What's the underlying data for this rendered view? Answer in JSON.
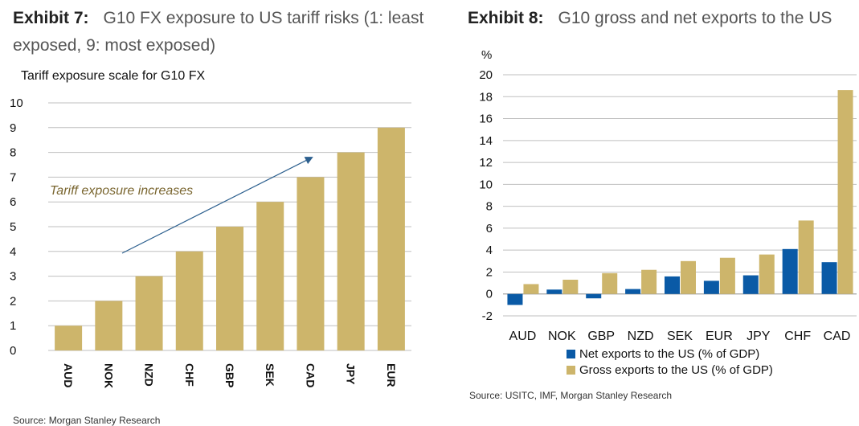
{
  "exhibit7": {
    "label": "Exhibit 7:",
    "title": "G10 FX exposure to US tariff risks (1: least exposed, 9: most exposed)",
    "subtitle": "Tariff exposure scale for G10 FX",
    "annotation": "Tariff exposure increases",
    "source": "Source: Morgan Stanley Research"
  },
  "exhibit8": {
    "label": "Exhibit 8:",
    "title": "G10 gross and net exports to the US",
    "source": "Source: USITC, IMF, Morgan Stanley Research"
  },
  "colors": {
    "gold": "#CDB56B",
    "blue": "#0A5AA6",
    "grid": "#BFBFBF",
    "arrow": "#2C5F8E",
    "annotation": "#7A6630"
  },
  "chart_data": [
    {
      "type": "bar",
      "title": "Tariff exposure scale for G10 FX",
      "categories": [
        "AUD",
        "NOK",
        "NZD",
        "CHF",
        "GBP",
        "SEK",
        "CAD",
        "JPY",
        "EUR"
      ],
      "values": [
        1,
        2,
        3,
        4,
        5,
        6,
        7,
        8,
        9
      ],
      "ylim": [
        0,
        10
      ],
      "yticks": [
        "0",
        "1",
        "2",
        "3",
        "4",
        "5",
        "6",
        "7",
        "8",
        "9",
        "10"
      ],
      "annotation": "Tariff exposure increases",
      "grid": true
    },
    {
      "type": "bar",
      "title": "G10 gross and net exports to the US",
      "ylabel": "%",
      "categories": [
        "AUD",
        "NOK",
        "GBP",
        "NZD",
        "SEK",
        "EUR",
        "JPY",
        "CHF",
        "CAD"
      ],
      "series": [
        {
          "name": "Net exports to the US (% of GDP)",
          "values": [
            -1.0,
            0.4,
            -0.4,
            0.45,
            1.6,
            1.2,
            1.7,
            4.1,
            2.9
          ]
        },
        {
          "name": "Gross exports to the US (% of GDP)",
          "values": [
            0.9,
            1.3,
            1.9,
            2.2,
            3.0,
            3.3,
            3.6,
            6.7,
            18.6
          ]
        }
      ],
      "ylim": [
        -2,
        20
      ],
      "yticks": [
        "-2",
        "0",
        "2",
        "4",
        "6",
        "8",
        "10",
        "12",
        "14",
        "16",
        "18",
        "20"
      ],
      "legend": "bottom",
      "grid": true
    }
  ]
}
